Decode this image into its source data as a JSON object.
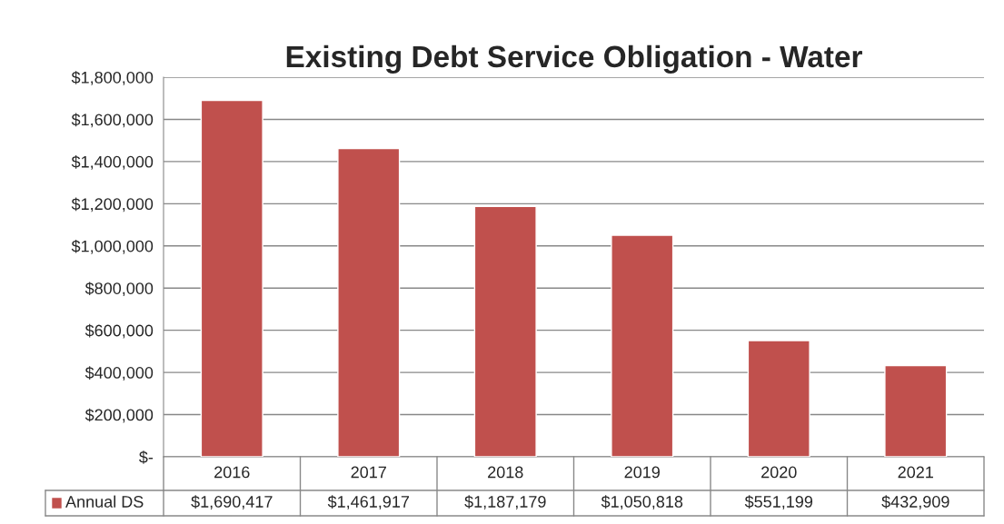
{
  "chart_data": {
    "type": "bar",
    "title": "Existing Debt Service Obligation - Water",
    "categories": [
      "2016",
      "2017",
      "2018",
      "2019",
      "2020",
      "2021"
    ],
    "series": [
      {
        "name": "Annual DS",
        "color": "#c0504d",
        "values": [
          1690417,
          1461917,
          1187179,
          1050818,
          551199,
          432909
        ],
        "value_labels": [
          "$1,690,417",
          "$1,461,917",
          "$1,187,179",
          "$1,050,818",
          "$551,199",
          "$432,909"
        ]
      }
    ],
    "ylim": [
      0,
      1800000
    ],
    "yticks": [
      {
        "value": 0,
        "label": "$-"
      },
      {
        "value": 200000,
        "label": "$200,000"
      },
      {
        "value": 400000,
        "label": "$400,000"
      },
      {
        "value": 600000,
        "label": "$600,000"
      },
      {
        "value": 800000,
        "label": "$800,000"
      },
      {
        "value": 1000000,
        "label": "$1,000,000"
      },
      {
        "value": 1200000,
        "label": "$1,200,000"
      },
      {
        "value": 1400000,
        "label": "$1,400,000"
      },
      {
        "value": 1600000,
        "label": "$1,600,000"
      },
      {
        "value": 1800000,
        "label": "$1,800,000"
      }
    ],
    "grid": "y",
    "legend": "bottom",
    "data_labels": true
  }
}
